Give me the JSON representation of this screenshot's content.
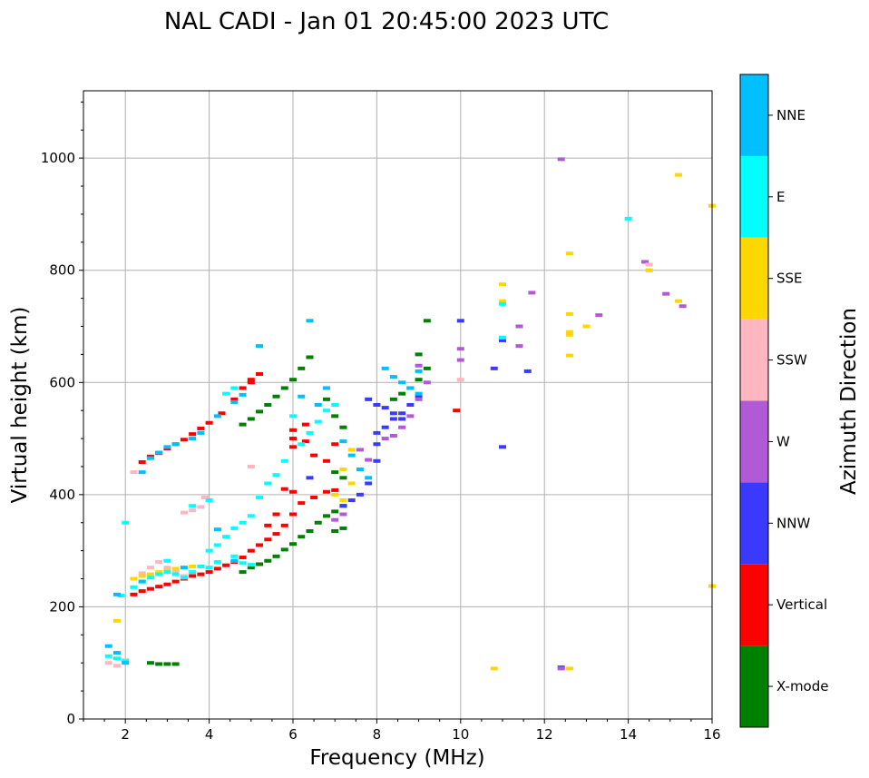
{
  "chart_data": {
    "type": "scatter",
    "title": "NAL CADI - Jan 01 20:45:00 2023 UTC",
    "xlabel": "Frequency (MHz)",
    "ylabel": "Virtual height (km)",
    "xlim": [
      1,
      16
    ],
    "ylim": [
      0,
      1120
    ],
    "x_ticks": [
      2,
      4,
      6,
      8,
      10,
      12,
      14,
      16
    ],
    "y_ticks": [
      0,
      200,
      400,
      600,
      800,
      1000
    ],
    "grid": true,
    "colorbar": {
      "label": "Azimuth Direction",
      "categories": [
        {
          "name": "X-mode",
          "color": "#008000"
        },
        {
          "name": "Vertical",
          "color": "#ff0000"
        },
        {
          "name": "NNW",
          "color": "#3a3aff"
        },
        {
          "name": "W",
          "color": "#b25ad6"
        },
        {
          "name": "SSW",
          "color": "#ffb6c1"
        },
        {
          "name": "SSE",
          "color": "#ffd700"
        },
        {
          "name": "E",
          "color": "#00ffff"
        },
        {
          "name": "NNE",
          "color": "#00bfff"
        }
      ]
    },
    "series": [
      {
        "name": "Vertical",
        "points": [
          [
            2.4,
            458
          ],
          [
            2.6,
            468
          ],
          [
            2.8,
            474
          ],
          [
            3.0,
            482
          ],
          [
            3.2,
            490
          ],
          [
            3.4,
            498
          ],
          [
            3.6,
            508
          ],
          [
            3.8,
            518
          ],
          [
            4.0,
            528
          ],
          [
            4.3,
            545
          ],
          [
            4.6,
            570
          ],
          [
            4.8,
            590
          ],
          [
            5.0,
            605
          ],
          [
            5.2,
            615
          ],
          [
            6.0,
            485
          ],
          [
            6.0,
            500
          ],
          [
            6.0,
            515
          ],
          [
            6.3,
            495
          ],
          [
            6.3,
            525
          ],
          [
            6.5,
            470
          ],
          [
            6.8,
            460
          ],
          [
            2.2,
            222
          ],
          [
            2.4,
            228
          ],
          [
            2.6,
            232
          ],
          [
            2.8,
            236
          ],
          [
            3.0,
            240
          ],
          [
            3.2,
            245
          ],
          [
            3.4,
            250
          ],
          [
            3.6,
            255
          ],
          [
            3.8,
            258
          ],
          [
            4.0,
            262
          ],
          [
            4.2,
            268
          ],
          [
            4.4,
            274
          ],
          [
            4.6,
            280
          ],
          [
            4.8,
            288
          ],
          [
            5.0,
            300
          ],
          [
            5.2,
            310
          ],
          [
            5.4,
            320
          ],
          [
            5.6,
            330
          ],
          [
            5.8,
            345
          ],
          [
            6.0,
            365
          ],
          [
            6.2,
            385
          ],
          [
            6.5,
            395
          ],
          [
            6.8,
            405
          ],
          [
            7.0,
            408
          ],
          [
            5.4,
            345
          ],
          [
            5.6,
            365
          ],
          [
            5.8,
            410
          ],
          [
            6.0,
            405
          ],
          [
            5.0,
            600
          ],
          [
            7.0,
            490
          ],
          [
            9.9,
            550
          ]
        ]
      },
      {
        "name": "X-mode",
        "points": [
          [
            2.6,
            100
          ],
          [
            2.8,
            98
          ],
          [
            3.0,
            98
          ],
          [
            3.2,
            98
          ],
          [
            4.8,
            262
          ],
          [
            5.0,
            270
          ],
          [
            5.2,
            276
          ],
          [
            5.4,
            282
          ],
          [
            5.6,
            290
          ],
          [
            5.8,
            302
          ],
          [
            6.0,
            312
          ],
          [
            6.2,
            325
          ],
          [
            6.4,
            335
          ],
          [
            6.6,
            350
          ],
          [
            6.8,
            362
          ],
          [
            7.0,
            370
          ],
          [
            7.2,
            380
          ],
          [
            4.8,
            525
          ],
          [
            5.0,
            535
          ],
          [
            5.2,
            548
          ],
          [
            5.4,
            560
          ],
          [
            5.6,
            575
          ],
          [
            5.8,
            590
          ],
          [
            6.0,
            605
          ],
          [
            6.2,
            625
          ],
          [
            6.4,
            645
          ],
          [
            6.8,
            570
          ],
          [
            7.0,
            540
          ],
          [
            7.2,
            520
          ],
          [
            7.0,
            440
          ],
          [
            7.2,
            430
          ],
          [
            8.4,
            570
          ],
          [
            8.6,
            580
          ],
          [
            8.8,
            590
          ],
          [
            9.0,
            605
          ],
          [
            9.2,
            625
          ],
          [
            9.0,
            650
          ],
          [
            9.2,
            710
          ],
          [
            7.0,
            335
          ],
          [
            7.2,
            340
          ]
        ]
      },
      {
        "name": "NNW",
        "points": [
          [
            7.2,
            380
          ],
          [
            7.4,
            390
          ],
          [
            7.6,
            400
          ],
          [
            7.8,
            420
          ],
          [
            8.0,
            460
          ],
          [
            8.0,
            490
          ],
          [
            8.0,
            510
          ],
          [
            8.2,
            520
          ],
          [
            8.4,
            535
          ],
          [
            8.6,
            545
          ],
          [
            8.8,
            560
          ],
          [
            9.0,
            575
          ],
          [
            7.8,
            570
          ],
          [
            8.0,
            560
          ],
          [
            8.2,
            555
          ],
          [
            8.4,
            545
          ],
          [
            8.6,
            535
          ],
          [
            6.4,
            430
          ],
          [
            10.0,
            710
          ],
          [
            10.8,
            625
          ],
          [
            11.0,
            675
          ],
          [
            11.0,
            485
          ],
          [
            11.6,
            620
          ],
          [
            12.4,
            92
          ]
        ]
      },
      {
        "name": "W",
        "points": [
          [
            8.2,
            500
          ],
          [
            8.4,
            505
          ],
          [
            8.6,
            520
          ],
          [
            8.8,
            540
          ],
          [
            9.0,
            570
          ],
          [
            9.2,
            600
          ],
          [
            9.0,
            630
          ],
          [
            7.0,
            355
          ],
          [
            7.2,
            365
          ],
          [
            10.0,
            640
          ],
          [
            10.0,
            660
          ],
          [
            11.0,
            680
          ],
          [
            11.4,
            665
          ],
          [
            11.4,
            700
          ],
          [
            11.7,
            760
          ],
          [
            12.4,
            998
          ],
          [
            13.3,
            720
          ],
          [
            14.4,
            815
          ],
          [
            14.9,
            758
          ],
          [
            15.3,
            736
          ],
          [
            12.4,
            90
          ],
          [
            7.6,
            480
          ],
          [
            7.8,
            462
          ]
        ]
      },
      {
        "name": "SSW",
        "points": [
          [
            1.6,
            100
          ],
          [
            1.8,
            95
          ],
          [
            2.0,
            105
          ],
          [
            2.4,
            260
          ],
          [
            2.6,
            270
          ],
          [
            2.8,
            280
          ],
          [
            3.0,
            270
          ],
          [
            3.2,
            262
          ],
          [
            3.4,
            255
          ],
          [
            3.4,
            368
          ],
          [
            3.6,
            372
          ],
          [
            3.8,
            378
          ],
          [
            3.9,
            395
          ],
          [
            10.0,
            605
          ],
          [
            14.5,
            800
          ],
          [
            2.2,
            440
          ],
          [
            5.0,
            450
          ],
          [
            14.5,
            810
          ]
        ]
      },
      {
        "name": "SSE",
        "points": [
          [
            1.8,
            175
          ],
          [
            2.2,
            250
          ],
          [
            2.4,
            255
          ],
          [
            2.6,
            258
          ],
          [
            2.8,
            262
          ],
          [
            3.0,
            265
          ],
          [
            3.2,
            268
          ],
          [
            3.4,
            270
          ],
          [
            3.6,
            272
          ],
          [
            7.0,
            400
          ],
          [
            7.2,
            390
          ],
          [
            7.4,
            420
          ],
          [
            7.2,
            495
          ],
          [
            7.4,
            480
          ],
          [
            7.2,
            445
          ],
          [
            7.6,
            445
          ],
          [
            11.0,
            745
          ],
          [
            11.0,
            775
          ],
          [
            12.6,
            690
          ],
          [
            12.6,
            685
          ],
          [
            12.6,
            648
          ],
          [
            12.6,
            722
          ],
          [
            12.6,
            830
          ],
          [
            13.0,
            700
          ],
          [
            14.5,
            800
          ],
          [
            15.2,
            745
          ],
          [
            15.2,
            970
          ],
          [
            16.0,
            915
          ],
          [
            16.0,
            237
          ],
          [
            10.8,
            90
          ],
          [
            12.6,
            90
          ]
        ]
      },
      {
        "name": "E",
        "points": [
          [
            1.6,
            112
          ],
          [
            1.8,
            108
          ],
          [
            2.0,
            103
          ],
          [
            1.9,
            220
          ],
          [
            2.2,
            235
          ],
          [
            2.4,
            245
          ],
          [
            2.6,
            252
          ],
          [
            2.8,
            258
          ],
          [
            3.0,
            262
          ],
          [
            3.2,
            258
          ],
          [
            3.4,
            252
          ],
          [
            3.6,
            262
          ],
          [
            3.8,
            272
          ],
          [
            4.0,
            300
          ],
          [
            4.2,
            310
          ],
          [
            4.4,
            325
          ],
          [
            4.6,
            340
          ],
          [
            4.8,
            350
          ],
          [
            5.0,
            362
          ],
          [
            5.2,
            395
          ],
          [
            5.4,
            420
          ],
          [
            5.6,
            435
          ],
          [
            5.8,
            460
          ],
          [
            6.2,
            490
          ],
          [
            6.4,
            510
          ],
          [
            6.6,
            530
          ],
          [
            6.8,
            550
          ],
          [
            7.0,
            560
          ],
          [
            4.0,
            270
          ],
          [
            4.2,
            280
          ],
          [
            4.6,
            290
          ],
          [
            4.8,
            278
          ],
          [
            5.0,
            275
          ],
          [
            3.6,
            380
          ],
          [
            4.0,
            390
          ],
          [
            4.4,
            580
          ],
          [
            4.6,
            590
          ],
          [
            14.0,
            892
          ],
          [
            11.0,
            680
          ],
          [
            11.0,
            740
          ],
          [
            2.0,
            350
          ],
          [
            3.0,
            282
          ],
          [
            6.0,
            540
          ]
        ]
      },
      {
        "name": "NNE",
        "points": [
          [
            1.6,
            130
          ],
          [
            1.8,
            118
          ],
          [
            2.0,
            100
          ],
          [
            1.8,
            222
          ],
          [
            2.4,
            440
          ],
          [
            2.6,
            465
          ],
          [
            2.8,
            475
          ],
          [
            3.0,
            485
          ],
          [
            3.2,
            490
          ],
          [
            3.6,
            500
          ],
          [
            3.8,
            510
          ],
          [
            4.2,
            540
          ],
          [
            4.6,
            565
          ],
          [
            4.8,
            578
          ],
          [
            5.2,
            665
          ],
          [
            6.2,
            575
          ],
          [
            6.4,
            710
          ],
          [
            6.6,
            560
          ],
          [
            6.8,
            590
          ],
          [
            7.2,
            495
          ],
          [
            7.4,
            470
          ],
          [
            7.6,
            445
          ],
          [
            7.8,
            430
          ],
          [
            8.2,
            625
          ],
          [
            8.4,
            610
          ],
          [
            8.6,
            600
          ],
          [
            8.8,
            590
          ],
          [
            9.0,
            580
          ],
          [
            9.0,
            620
          ],
          [
            4.2,
            338
          ],
          [
            4.6,
            282
          ],
          [
            3.4,
            270
          ],
          [
            2.4,
            245
          ]
        ]
      }
    ]
  }
}
